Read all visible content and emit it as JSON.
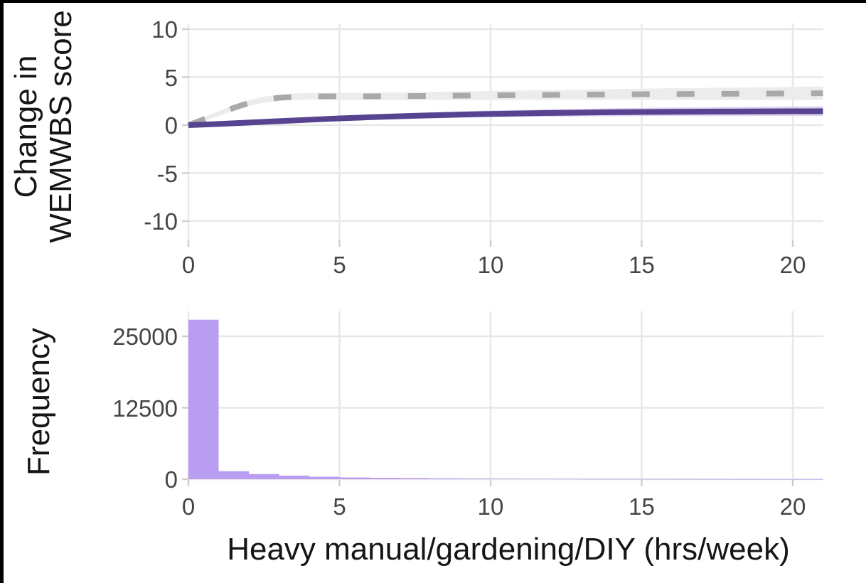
{
  "figure": {
    "background": "#ffffff",
    "frame_color": "#000000"
  },
  "labels": {
    "top_ylabel_line1": "Change in",
    "top_ylabel_line2": "WEMWBS score",
    "bottom_ylabel": "Frequency",
    "xlabel": "Heavy manual/gardening/DIY (hrs/week)"
  },
  "colors": {
    "grid": "#e7e7e7",
    "tick_mark": "#cdcdcd",
    "tick_text": "#454545",
    "title_text": "#151515",
    "ref_line": "#a9a9a9",
    "ref_band": "#ececec",
    "trend_line": "#574490",
    "trend_band": "#ded4f2",
    "hist_fill": "#b99df0"
  },
  "chart_data": [
    {
      "type": "line",
      "panel": "top",
      "title": "",
      "xlabel": "Heavy manual/gardening/DIY (hrs/week)",
      "ylabel": "Change in WEMWBS score",
      "xlim": [
        0,
        21
      ],
      "ylim": [
        -12,
        10.6
      ],
      "x_ticks": [
        0,
        5,
        10,
        15,
        20
      ],
      "y_ticks": [
        10,
        5,
        0,
        -5,
        -10
      ],
      "grid": true,
      "legend": "none",
      "series": [
        {
          "name": "reference smooth (dashed, with confidence band)",
          "style": "dashed",
          "x": [
            0,
            0.5,
            1,
            1.5,
            2,
            2.5,
            3,
            3.5,
            4,
            5,
            6,
            7,
            8,
            9,
            10,
            12,
            14,
            16,
            18,
            20,
            21
          ],
          "y": [
            0,
            0.6,
            1.2,
            1.8,
            2.3,
            2.65,
            2.85,
            2.95,
            3.0,
            3.0,
            3.0,
            3.02,
            3.04,
            3.07,
            3.1,
            3.15,
            3.2,
            3.24,
            3.27,
            3.3,
            3.32
          ],
          "band_halfwidth": [
            0.22,
            0.24,
            0.26,
            0.28,
            0.3,
            0.31,
            0.32,
            0.33,
            0.34,
            0.36,
            0.38,
            0.4,
            0.42,
            0.44,
            0.46,
            0.5,
            0.55,
            0.6,
            0.64,
            0.68,
            0.7
          ]
        },
        {
          "name": "fitted smooth (solid, with confidence band)",
          "style": "solid",
          "x": [
            0,
            1,
            2,
            3,
            4,
            5,
            6,
            7,
            8,
            9,
            10,
            12,
            14,
            16,
            18,
            20,
            21
          ],
          "y": [
            0,
            0.12,
            0.27,
            0.42,
            0.56,
            0.7,
            0.82,
            0.93,
            1.02,
            1.1,
            1.17,
            1.27,
            1.34,
            1.39,
            1.42,
            1.44,
            1.45
          ],
          "band_halfwidth": [
            0.15,
            0.17,
            0.19,
            0.21,
            0.23,
            0.25,
            0.27,
            0.29,
            0.31,
            0.33,
            0.35,
            0.38,
            0.41,
            0.44,
            0.47,
            0.5,
            0.52
          ]
        }
      ]
    },
    {
      "type": "bar",
      "panel": "bottom",
      "title": "",
      "xlabel": "Heavy manual/gardening/DIY (hrs/week)",
      "ylabel": "Frequency",
      "xlim": [
        0,
        21
      ],
      "ylim": [
        0,
        29400
      ],
      "x_ticks": [
        0,
        5,
        10,
        15,
        20
      ],
      "y_ticks": [
        25000,
        12500,
        0
      ],
      "grid": true,
      "bin_start": 0,
      "bin_width": 1,
      "values": [
        27900,
        1400,
        900,
        620,
        430,
        300,
        240,
        200,
        150,
        120,
        90,
        70,
        55,
        45,
        35,
        28,
        22,
        18,
        14,
        12,
        10
      ]
    }
  ]
}
